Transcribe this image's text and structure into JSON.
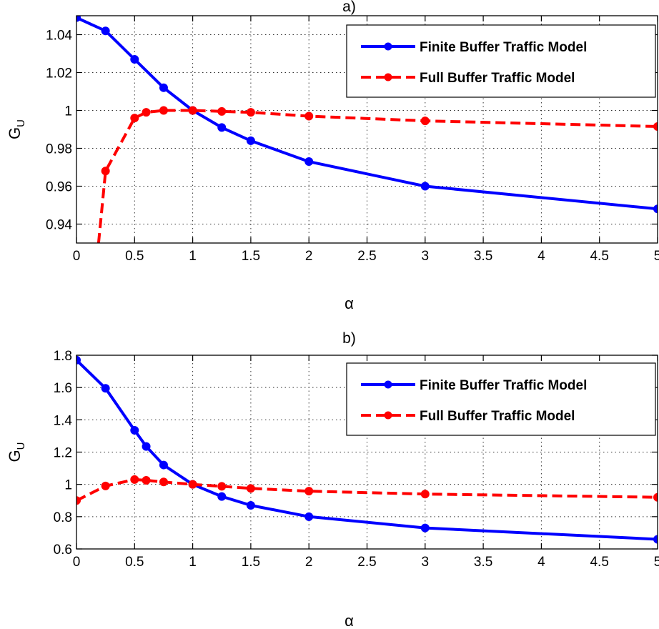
{
  "chart_data": [
    {
      "type": "line",
      "title": "a)",
      "xlabel": "α",
      "ylabel": "G",
      "ylabel_subscript": "U",
      "xlim": [
        0,
        5
      ],
      "ylim": [
        0.93,
        1.05
      ],
      "xticks": [
        0,
        0.5,
        1,
        1.5,
        2,
        2.5,
        3,
        3.5,
        4,
        4.5,
        5
      ],
      "xtick_labels": [
        "0",
        "0.5",
        "1",
        "1.5",
        "2",
        "2.5",
        "3",
        "3.5",
        "4",
        "4.5",
        "5"
      ],
      "yticks": [
        0.94,
        0.96,
        0.98,
        1.0,
        1.02,
        1.04
      ],
      "ytick_labels": [
        "0.94",
        "0.96",
        "0.98",
        "1",
        "1.02",
        "1.04"
      ],
      "grid": true,
      "legend_position": "top-right",
      "series": [
        {
          "name": "Finite Buffer Traffic Model",
          "color": "#0000ff",
          "line_style": "solid",
          "x": [
            0,
            0.25,
            0.5,
            0.75,
            1,
            1.25,
            1.5,
            2,
            3,
            5
          ],
          "y": [
            1.049,
            1.042,
            1.027,
            1.012,
            1.0,
            0.991,
            0.984,
            0.973,
            0.96,
            0.948
          ]
        },
        {
          "name": "Full Buffer Traffic Model",
          "color": "#ff0000",
          "line_style": "dashed",
          "x": [
            0.19,
            0.25,
            0.5,
            0.6,
            0.75,
            1,
            1.25,
            1.5,
            2,
            3,
            5
          ],
          "y": [
            0.93,
            0.968,
            0.996,
            0.999,
            1.0,
            1.0,
            0.9995,
            0.999,
            0.997,
            0.9945,
            0.9915
          ],
          "marker_mask": [
            false,
            true,
            true,
            true,
            true,
            true,
            true,
            true,
            true,
            true,
            true
          ]
        }
      ]
    },
    {
      "type": "line",
      "title": "b)",
      "xlabel": "α",
      "ylabel": "G",
      "ylabel_subscript": "U",
      "xlim": [
        0,
        5
      ],
      "ylim": [
        0.6,
        1.8
      ],
      "xticks": [
        0,
        0.5,
        1,
        1.5,
        2,
        2.5,
        3,
        3.5,
        4,
        4.5,
        5
      ],
      "xtick_labels": [
        "0",
        "0.5",
        "1",
        "1.5",
        "2",
        "2.5",
        "3",
        "3.5",
        "4",
        "4.5",
        "5"
      ],
      "yticks": [
        0.6,
        0.8,
        1.0,
        1.2,
        1.4,
        1.6,
        1.8
      ],
      "ytick_labels": [
        "0.6",
        "0.8",
        "1",
        "1.2",
        "1.4",
        "1.6",
        "1.8"
      ],
      "grid": true,
      "legend_position": "top-right",
      "series": [
        {
          "name": "Finite Buffer Traffic Model",
          "color": "#0000ff",
          "line_style": "solid",
          "x": [
            0,
            0.25,
            0.5,
            0.6,
            0.75,
            1,
            1.25,
            1.5,
            2,
            3,
            5
          ],
          "y": [
            1.77,
            1.595,
            1.335,
            1.235,
            1.12,
            1.0,
            0.925,
            0.87,
            0.8,
            0.73,
            0.66
          ]
        },
        {
          "name": "Full Buffer Traffic Model",
          "color": "#ff0000",
          "line_style": "dashed",
          "x": [
            0,
            0.25,
            0.5,
            0.6,
            0.75,
            1,
            1.25,
            1.5,
            2,
            3,
            5
          ],
          "y": [
            0.9,
            0.99,
            1.03,
            1.025,
            1.015,
            1.0,
            0.988,
            0.975,
            0.958,
            0.94,
            0.92
          ]
        }
      ]
    }
  ]
}
